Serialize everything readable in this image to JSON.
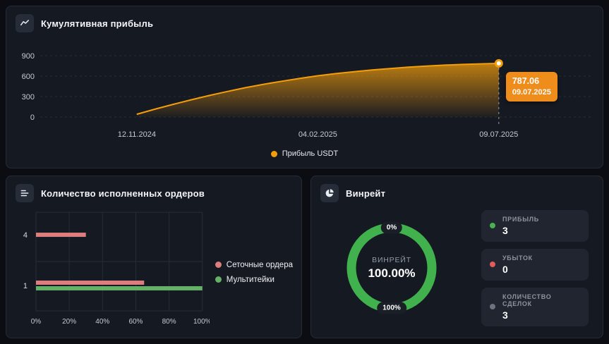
{
  "colors": {
    "background": "#0b0d12",
    "panel": "#151922",
    "panel_border": "#262c37",
    "grid": "#272d38",
    "axis_text": "#c6cad2",
    "accent_orange": "#f59e0b",
    "tooltip_orange": "#ee8c1c",
    "red": "#dd7d7d",
    "green": "#65b168",
    "donut_green": "#40b14c",
    "gray_dot": "#6b7280"
  },
  "panels": {
    "cumulative": {
      "title": "Кумулятивная прибыль",
      "legend_label": "Прибыль USDT",
      "tooltip_value": "787.06",
      "tooltip_date": "09.07.2025"
    },
    "orders": {
      "title": "Количество исполненных ордеров",
      "legend": [
        "Сеточные ордера",
        "Мультитейки"
      ]
    },
    "winrate": {
      "title": "Винрейт",
      "top_label": "0%",
      "bottom_label": "100%",
      "center_label": "ВИНРЕЙТ",
      "center_value": "100.00%",
      "stats": [
        {
          "label": "ПРИБЫЛЬ",
          "value": "3",
          "color": "#4caf50"
        },
        {
          "label": "УБЫТОК",
          "value": "0",
          "color": "#e05c5c"
        },
        {
          "label": "КОЛИЧЕСТВО СДЕЛОК",
          "value": "3",
          "color": "#6b7280"
        }
      ]
    }
  },
  "chart_data": [
    {
      "type": "area",
      "name": "cumulative_profit",
      "title": "Кумулятивная прибыль",
      "x_ticks": [
        "12.11.2024",
        "04.02.2025",
        "09.07.2025"
      ],
      "y_ticks": [
        0,
        300,
        600,
        900
      ],
      "ylim": [
        0,
        900
      ],
      "grid": "dashed-horizontal",
      "legend_position": "bottom-center",
      "series": [
        {
          "name": "Прибыль USDT",
          "color": "#f59e0b",
          "points": [
            [
              0,
              40
            ],
            [
              0.05,
              115
            ],
            [
              0.1,
              185
            ],
            [
              0.15,
              252
            ],
            [
              0.2,
              315
            ],
            [
              0.25,
              374
            ],
            [
              0.3,
              430
            ],
            [
              0.35,
              480
            ],
            [
              0.4,
              525
            ],
            [
              0.45,
              567
            ],
            [
              0.5,
              605
            ],
            [
              0.55,
              637
            ],
            [
              0.6,
              665
            ],
            [
              0.65,
              690
            ],
            [
              0.7,
              712
            ],
            [
              0.75,
              731
            ],
            [
              0.8,
              748
            ],
            [
              0.85,
              761
            ],
            [
              0.9,
              772
            ],
            [
              0.95,
              780
            ],
            [
              1,
              787.06
            ]
          ]
        }
      ],
      "last_point": {
        "value": 787.06,
        "date": "09.07.2025"
      }
    },
    {
      "type": "bar",
      "name": "executed_orders",
      "title": "Количество исполненных ордеров",
      "orientation": "horizontal",
      "categories": [
        "4",
        "1"
      ],
      "x_ticks": [
        "0%",
        "20%",
        "40%",
        "60%",
        "80%",
        "100%"
      ],
      "xlim": [
        0,
        100
      ],
      "legend_position": "right",
      "series": [
        {
          "name": "Сеточные ордера",
          "color": "#dd7d7d",
          "values": [
            30,
            65
          ]
        },
        {
          "name": "Мультитейки",
          "color": "#65b168",
          "values": [
            0,
            100
          ]
        }
      ]
    },
    {
      "type": "pie",
      "name": "winrate_donut",
      "title": "Винрейт",
      "value": 100,
      "display": "100.00%",
      "color": "#40b14c",
      "segments": [
        {
          "label": "ВИНРЕЙТ",
          "value": 100
        }
      ]
    }
  ]
}
